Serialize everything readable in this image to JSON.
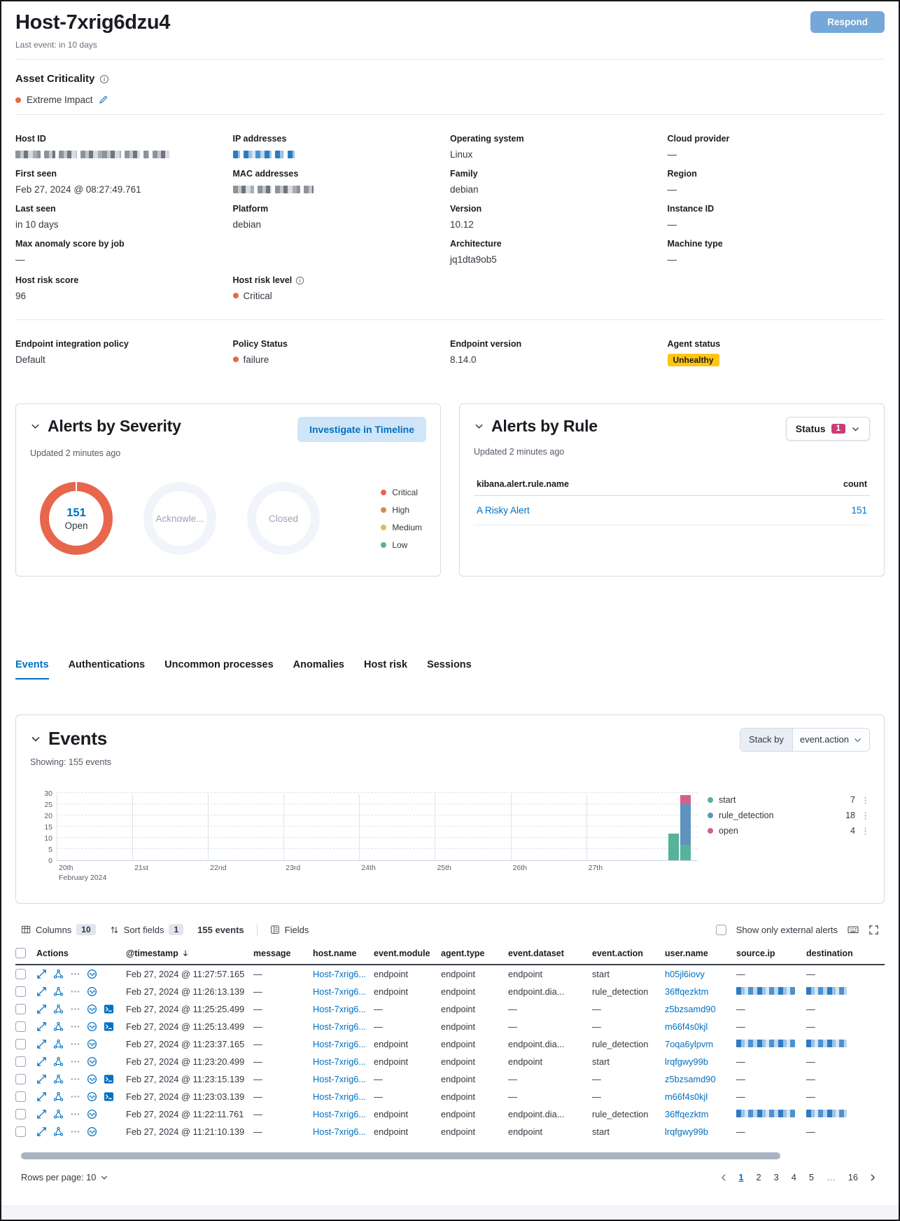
{
  "header": {
    "title": "Host-7xrig6dzu4",
    "last_event": "Last event: in 10 days",
    "respond_label": "Respond"
  },
  "asset_criticality": {
    "label": "Asset Criticality",
    "value": "Extreme Impact",
    "dot_color": "#e7664c"
  },
  "overview": {
    "columns": [
      [
        {
          "label": "Host ID",
          "redacted": "host-id"
        },
        {
          "label": "First seen",
          "value": "Feb 27, 2024 @ 08:27:49.761"
        },
        {
          "label": "Last seen",
          "value": "in 10 days"
        },
        {
          "label": "Max anomaly score by job",
          "value": "—"
        }
      ],
      [
        {
          "label": "IP addresses",
          "redacted": "ip"
        },
        {
          "label": "MAC addresses",
          "redacted": "mac"
        },
        {
          "label": "Platform",
          "value": "debian"
        }
      ],
      [
        {
          "label": "Operating system",
          "value": "Linux"
        },
        {
          "label": "Family",
          "value": "debian"
        },
        {
          "label": "Version",
          "value": "10.12"
        },
        {
          "label": "Architecture",
          "value": "jq1dta9ob5"
        }
      ],
      [
        {
          "label": "Cloud provider",
          "value": "—"
        },
        {
          "label": "Region",
          "value": "—"
        },
        {
          "label": "Instance ID",
          "value": "—"
        },
        {
          "label": "Machine type",
          "value": "—"
        }
      ]
    ]
  },
  "risk": {
    "score_label": "Host risk score",
    "score": "96",
    "level_label": "Host risk level",
    "level": "Critical",
    "level_color": "#e7664c"
  },
  "endpoint": {
    "policy_label": "Endpoint integration policy",
    "policy_value": "Default",
    "status_label": "Policy Status",
    "status_value": "failure",
    "status_color": "#e7664c",
    "version_label": "Endpoint version",
    "version_value": "8.14.0",
    "agent_label": "Agent status",
    "agent_value": "Unhealthy",
    "agent_badge_color": "#fec514"
  },
  "alerts_by_severity": {
    "title": "Alerts by Severity",
    "updated": "Updated 2 minutes ago",
    "investigate_label": "Investigate in Timeline",
    "donuts": [
      {
        "value": "151",
        "label": "Open",
        "color": "#e7664c"
      },
      {
        "label": "Acknowle..."
      },
      {
        "label": "Closed"
      }
    ],
    "legend": [
      {
        "label": "Critical",
        "color": "#e7664c"
      },
      {
        "label": "High",
        "color": "#da8b45"
      },
      {
        "label": "Medium",
        "color": "#d6bf57"
      },
      {
        "label": "Low",
        "color": "#54b399"
      }
    ]
  },
  "alerts_by_rule": {
    "title": "Alerts by Rule",
    "updated": "Updated 2 minutes ago",
    "status_label": "Status",
    "status_badge": "1",
    "name_col": "kibana.alert.rule.name",
    "count_col": "count",
    "rows": [
      {
        "name": "A Risky Alert",
        "count": "151"
      }
    ]
  },
  "tabs": [
    {
      "label": "Events",
      "active": true
    },
    {
      "label": "Authentications"
    },
    {
      "label": "Uncommon processes"
    },
    {
      "label": "Anomalies"
    },
    {
      "label": "Host risk"
    },
    {
      "label": "Sessions"
    }
  ],
  "events_panel": {
    "title": "Events",
    "showing": "Showing: 155 events",
    "stack_by_label": "Stack by",
    "stack_by_value": "event.action"
  },
  "chart_data": {
    "type": "bar",
    "stacked": true,
    "title": "Events",
    "x_ticks": [
      "20th",
      "21st",
      "22nd",
      "23rd",
      "24th",
      "25th",
      "26th",
      "27th"
    ],
    "x_axis_secondary_label": "February 2024",
    "ylim": [
      0,
      30
    ],
    "y_ticks": [
      0,
      5,
      10,
      15,
      20,
      25,
      30
    ],
    "grid": true,
    "legend_position": "right",
    "series": [
      {
        "name": "start",
        "color": "#54b399",
        "legend_value": 7
      },
      {
        "name": "rule_detection",
        "color": "#6092c0",
        "legend_value": 18
      },
      {
        "name": "open",
        "color": "#d36086",
        "legend_value": 4
      }
    ],
    "bars": [
      {
        "x": "Feb 27 (early)",
        "stack": [
          {
            "series": "start",
            "value": 12
          }
        ]
      },
      {
        "x": "Feb 27 (late)",
        "stack": [
          {
            "series": "start",
            "value": 7
          },
          {
            "series": "rule_detection",
            "value": 18
          },
          {
            "series": "open",
            "value": 4
          }
        ]
      }
    ]
  },
  "table": {
    "controls": {
      "columns_label": "Columns",
      "columns_badge": "10",
      "sort_label": "Sort fields",
      "sort_badge": "1",
      "events_count": "155 events",
      "fields_label": "Fields",
      "external_label": "Show only external alerts"
    },
    "columns": [
      "Actions",
      "@timestamp",
      "message",
      "host.name",
      "event.module",
      "agent.type",
      "event.dataset",
      "event.action",
      "user.name",
      "source.ip",
      "destination"
    ],
    "action_icons": [
      "expand-event",
      "analyze-event",
      "more-actions",
      "investigate-in-timeline"
    ],
    "session_icon": "open-session-viewer",
    "rows": [
      {
        "timestamp": "Feb 27, 2024 @ 11:27:57.165",
        "message": "—",
        "host_name": "Host-7xrig6...",
        "event_module": "endpoint",
        "agent_type": "endpoint",
        "event_dataset": "endpoint",
        "event_action": "start",
        "user_name": "h05jl6iovy",
        "source_ip": "—",
        "destination": "—",
        "has_session_icon": false,
        "ip_redacted": false
      },
      {
        "timestamp": "Feb 27, 2024 @ 11:26:13.139",
        "message": "—",
        "host_name": "Host-7xrig6...",
        "event_module": "endpoint",
        "agent_type": "endpoint",
        "event_dataset": "endpoint.dia...",
        "event_action": "rule_detection",
        "user_name": "36ffqezktm",
        "source_ip": "",
        "destination": "",
        "has_session_icon": false,
        "ip_redacted": true
      },
      {
        "timestamp": "Feb 27, 2024 @ 11:25:25.499",
        "message": "—",
        "host_name": "Host-7xrig6...",
        "event_module": "—",
        "agent_type": "endpoint",
        "event_dataset": "—",
        "event_action": "—",
        "user_name": "z5bzsamd90",
        "source_ip": "—",
        "destination": "—",
        "has_session_icon": true,
        "ip_redacted": false
      },
      {
        "timestamp": "Feb 27, 2024 @ 11:25:13.499",
        "message": "—",
        "host_name": "Host-7xrig6...",
        "event_module": "—",
        "agent_type": "endpoint",
        "event_dataset": "—",
        "event_action": "—",
        "user_name": "m66f4s0kjl",
        "source_ip": "—",
        "destination": "—",
        "has_session_icon": true,
        "ip_redacted": false
      },
      {
        "timestamp": "Feb 27, 2024 @ 11:23:37.165",
        "message": "—",
        "host_name": "Host-7xrig6...",
        "event_module": "endpoint",
        "agent_type": "endpoint",
        "event_dataset": "endpoint.dia...",
        "event_action": "rule_detection",
        "user_name": "7oqa6ylpvm",
        "source_ip": "",
        "destination": "",
        "has_session_icon": false,
        "ip_redacted": true
      },
      {
        "timestamp": "Feb 27, 2024 @ 11:23:20.499",
        "message": "—",
        "host_name": "Host-7xrig6...",
        "event_module": "endpoint",
        "agent_type": "endpoint",
        "event_dataset": "endpoint",
        "event_action": "start",
        "user_name": "lrqfgwy99b",
        "source_ip": "—",
        "destination": "—",
        "has_session_icon": false,
        "ip_redacted": false
      },
      {
        "timestamp": "Feb 27, 2024 @ 11:23:15.139",
        "message": "—",
        "host_name": "Host-7xrig6...",
        "event_module": "—",
        "agent_type": "endpoint",
        "event_dataset": "—",
        "event_action": "—",
        "user_name": "z5bzsamd90",
        "source_ip": "—",
        "destination": "—",
        "has_session_icon": true,
        "ip_redacted": false
      },
      {
        "timestamp": "Feb 27, 2024 @ 11:23:03.139",
        "message": "—",
        "host_name": "Host-7xrig6...",
        "event_module": "—",
        "agent_type": "endpoint",
        "event_dataset": "—",
        "event_action": "—",
        "user_name": "m66f4s0kjl",
        "source_ip": "—",
        "destination": "—",
        "has_session_icon": true,
        "ip_redacted": false
      },
      {
        "timestamp": "Feb 27, 2024 @ 11:22:11.761",
        "message": "—",
        "host_name": "Host-7xrig6...",
        "event_module": "endpoint",
        "agent_type": "endpoint",
        "event_dataset": "endpoint.dia...",
        "event_action": "rule_detection",
        "user_name": "36ffqezktm",
        "source_ip": "",
        "destination": "",
        "has_session_icon": false,
        "ip_redacted": true
      },
      {
        "timestamp": "Feb 27, 2024 @ 11:21:10.139",
        "message": "—",
        "host_name": "Host-7xrig6...",
        "event_module": "endpoint",
        "agent_type": "endpoint",
        "event_dataset": "endpoint",
        "event_action": "start",
        "user_name": "lrqfgwy99b",
        "source_ip": "—",
        "destination": "—",
        "has_session_icon": false,
        "ip_redacted": false
      }
    ]
  },
  "pagination": {
    "rows_per_page": "Rows per page: 10",
    "pages": [
      "1",
      "2",
      "3",
      "4",
      "5",
      "…",
      "16"
    ],
    "active_page": "1"
  }
}
